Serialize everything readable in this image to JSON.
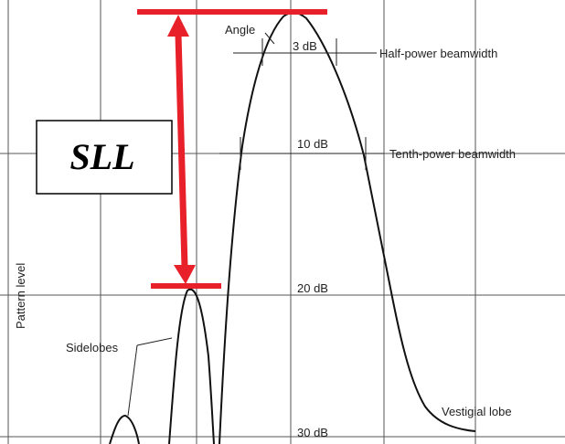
{
  "axis_label": "Pattern level",
  "levels": [
    "3 dB",
    "10 dB",
    "20 dB",
    "30 dB"
  ],
  "annotations": {
    "angle": "Angle",
    "half_power": "Half-power beamwidth",
    "tenth_power": "Tenth-power beamwidth",
    "sidelobes": "Sidelobes",
    "vestigial": "Vestigial lobe"
  },
  "box_label": "SLL"
}
